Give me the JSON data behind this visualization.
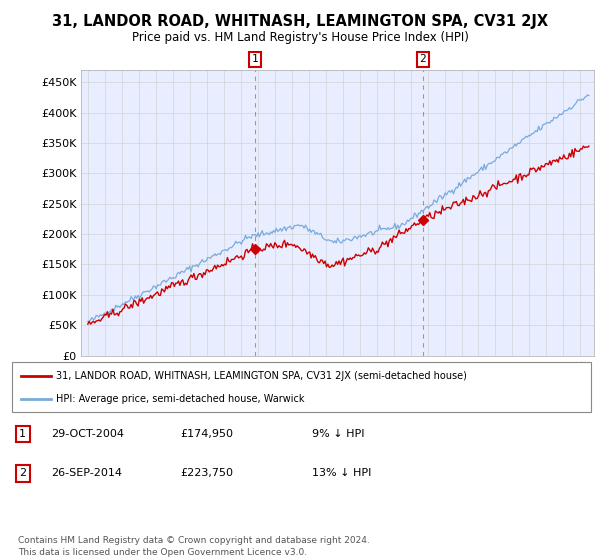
{
  "title": "31, LANDOR ROAD, WHITNASH, LEAMINGTON SPA, CV31 2JX",
  "subtitle": "Price paid vs. HM Land Registry's House Price Index (HPI)",
  "red_label": "31, LANDOR ROAD, WHITNASH, LEAMINGTON SPA, CV31 2JX (semi-detached house)",
  "blue_label": "HPI: Average price, semi-detached house, Warwick",
  "footnote": "Contains HM Land Registry data © Crown copyright and database right 2024.\nThis data is licensed under the Open Government Licence v3.0.",
  "purchase1_date": "29-OCT-2004",
  "purchase1_price": "£174,950",
  "purchase1_hpi": "9% ↓ HPI",
  "purchase2_date": "26-SEP-2014",
  "purchase2_price": "£223,750",
  "purchase2_hpi": "13% ↓ HPI",
  "ylim": [
    0,
    470000
  ],
  "yticks": [
    0,
    50000,
    100000,
    150000,
    200000,
    250000,
    300000,
    350000,
    400000,
    450000
  ],
  "ytick_labels": [
    "£0",
    "£50K",
    "£100K",
    "£150K",
    "£200K",
    "£250K",
    "£300K",
    "£350K",
    "£400K",
    "£450K"
  ],
  "plot_bg_color": "#e8eeff",
  "grid_color": "#cccccc",
  "red_color": "#cc0000",
  "blue_color": "#7aaadd",
  "marker1_x": 2004.83,
  "marker1_y": 174950,
  "marker2_x": 2014.73,
  "marker2_y": 223750,
  "vline1_x": 2004.83,
  "vline2_x": 2014.73,
  "xlim_start": 1994.6,
  "xlim_end": 2024.8
}
